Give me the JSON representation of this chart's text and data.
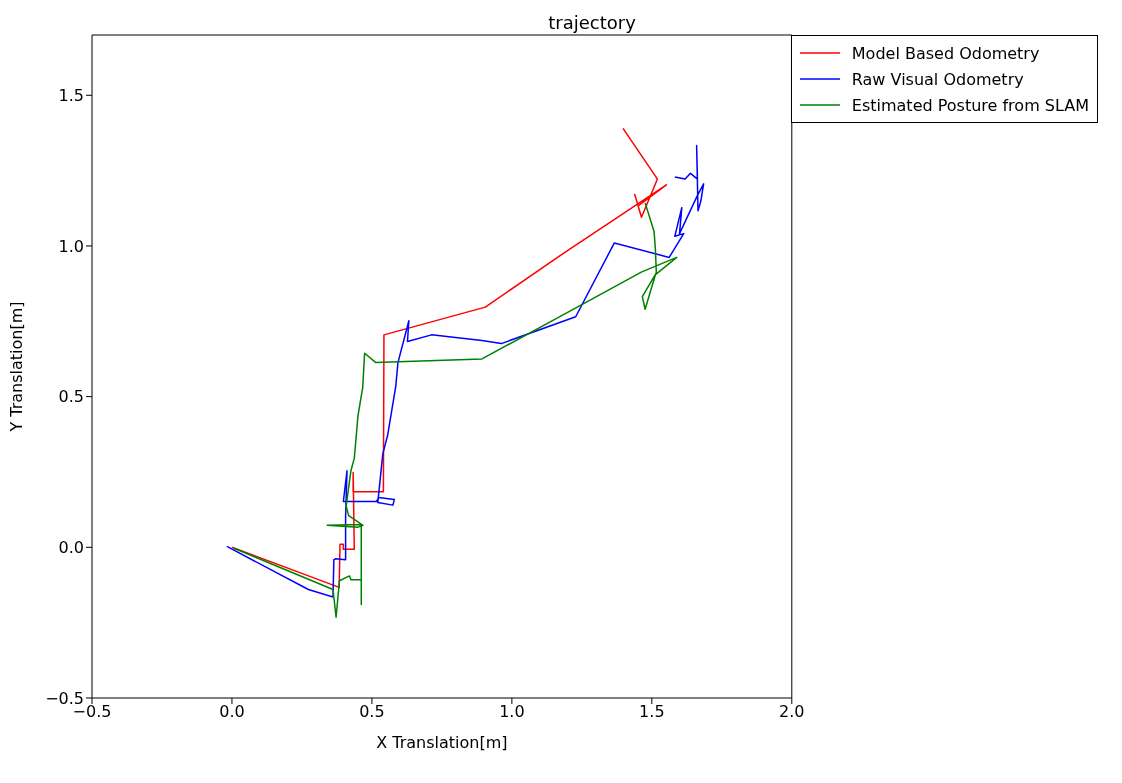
{
  "chart_data": {
    "type": "line",
    "title": "trajectory",
    "xlabel": "X Translation[m]",
    "ylabel": "Y Translation[m]",
    "xlim": [
      -0.5,
      2.0
    ],
    "ylim": [
      -0.5,
      1.7
    ],
    "xticks": [
      {
        "value": -0.5,
        "label": "−0.5"
      },
      {
        "value": 0,
        "label": "0.0"
      },
      {
        "value": 0.5,
        "label": "0.5"
      },
      {
        "value": 1,
        "label": "1.0"
      },
      {
        "value": 1.5,
        "label": "1.5"
      },
      {
        "value": 2,
        "label": "2.0"
      }
    ],
    "yticks": [
      {
        "value": -0.5,
        "label": "−0.5"
      },
      {
        "value": 0,
        "label": "0.0"
      },
      {
        "value": 0.5,
        "label": "0.5"
      },
      {
        "value": 1,
        "label": "1.0"
      },
      {
        "value": 1.5,
        "label": "1.5"
      }
    ],
    "grid": false,
    "legend": "top right",
    "marker": "none",
    "line_style": "solid",
    "series": [
      {
        "name": "Model Based Odometry",
        "color": "#ff0000",
        "x": [
          0.0,
          0.383,
          0.386,
          0.398,
          0.398,
          0.437,
          0.433,
          0.433,
          0.541,
          0.543,
          0.905,
          1.188,
          1.552,
          1.451,
          1.439,
          1.463,
          1.52,
          1.397
        ],
        "values": [
          0.0,
          -0.133,
          0.01,
          0.01,
          -0.006,
          -0.006,
          0.248,
          0.184,
          0.184,
          0.705,
          0.797,
          0.978,
          1.203,
          1.133,
          1.171,
          1.095,
          1.222,
          1.39
        ]
      },
      {
        "name": "Raw Visual Odometry",
        "color": "#0000ff",
        "x": [
          -0.018,
          0.273,
          0.361,
          0.364,
          0.371,
          0.406,
          0.406,
          0.411,
          0.398,
          0.516,
          0.524,
          0.58,
          0.575,
          0.521,
          0.539,
          0.556,
          0.585,
          0.593,
          0.632,
          0.627,
          0.713,
          0.893,
          0.962,
          1.228,
          1.366,
          1.562,
          1.614,
          1.582,
          1.607,
          1.599,
          1.663,
          1.685,
          1.675,
          1.665,
          1.66,
          1.663,
          1.638,
          1.619,
          1.582
        ],
        "values": [
          0.003,
          -0.14,
          -0.165,
          -0.041,
          -0.038,
          -0.041,
          0.102,
          0.254,
          0.152,
          0.152,
          0.165,
          0.159,
          0.14,
          0.149,
          0.311,
          0.371,
          0.533,
          0.613,
          0.752,
          0.683,
          0.705,
          0.686,
          0.676,
          0.765,
          1.01,
          0.962,
          1.041,
          1.032,
          1.127,
          1.041,
          1.168,
          1.206,
          1.149,
          1.117,
          1.333,
          1.222,
          1.241,
          1.222,
          1.229
        ]
      },
      {
        "name": "Estimated Posture from SLAM",
        "color": "#008000",
        "x": [
          0.007,
          0.361,
          0.372,
          0.384,
          0.42,
          0.425,
          0.462,
          0.462,
          0.462,
          0.462,
          0.34,
          0.45,
          0.468,
          0.417,
          0.408,
          0.425,
          0.437,
          0.45,
          0.467,
          0.474,
          0.514,
          0.893,
          1.245,
          1.464,
          1.589,
          1.513,
          1.476,
          1.466,
          1.516,
          1.513,
          1.508,
          1.476
        ],
        "values": [
          -0.003,
          -0.14,
          -0.232,
          -0.111,
          -0.095,
          -0.108,
          -0.108,
          -0.19,
          -0.11,
          0.076,
          0.073,
          0.067,
          0.073,
          0.105,
          0.137,
          0.254,
          0.295,
          0.435,
          0.53,
          0.644,
          0.613,
          0.625,
          0.803,
          0.914,
          0.962,
          0.905,
          0.79,
          0.832,
          0.911,
          0.984,
          1.048,
          1.143
        ]
      }
    ]
  }
}
